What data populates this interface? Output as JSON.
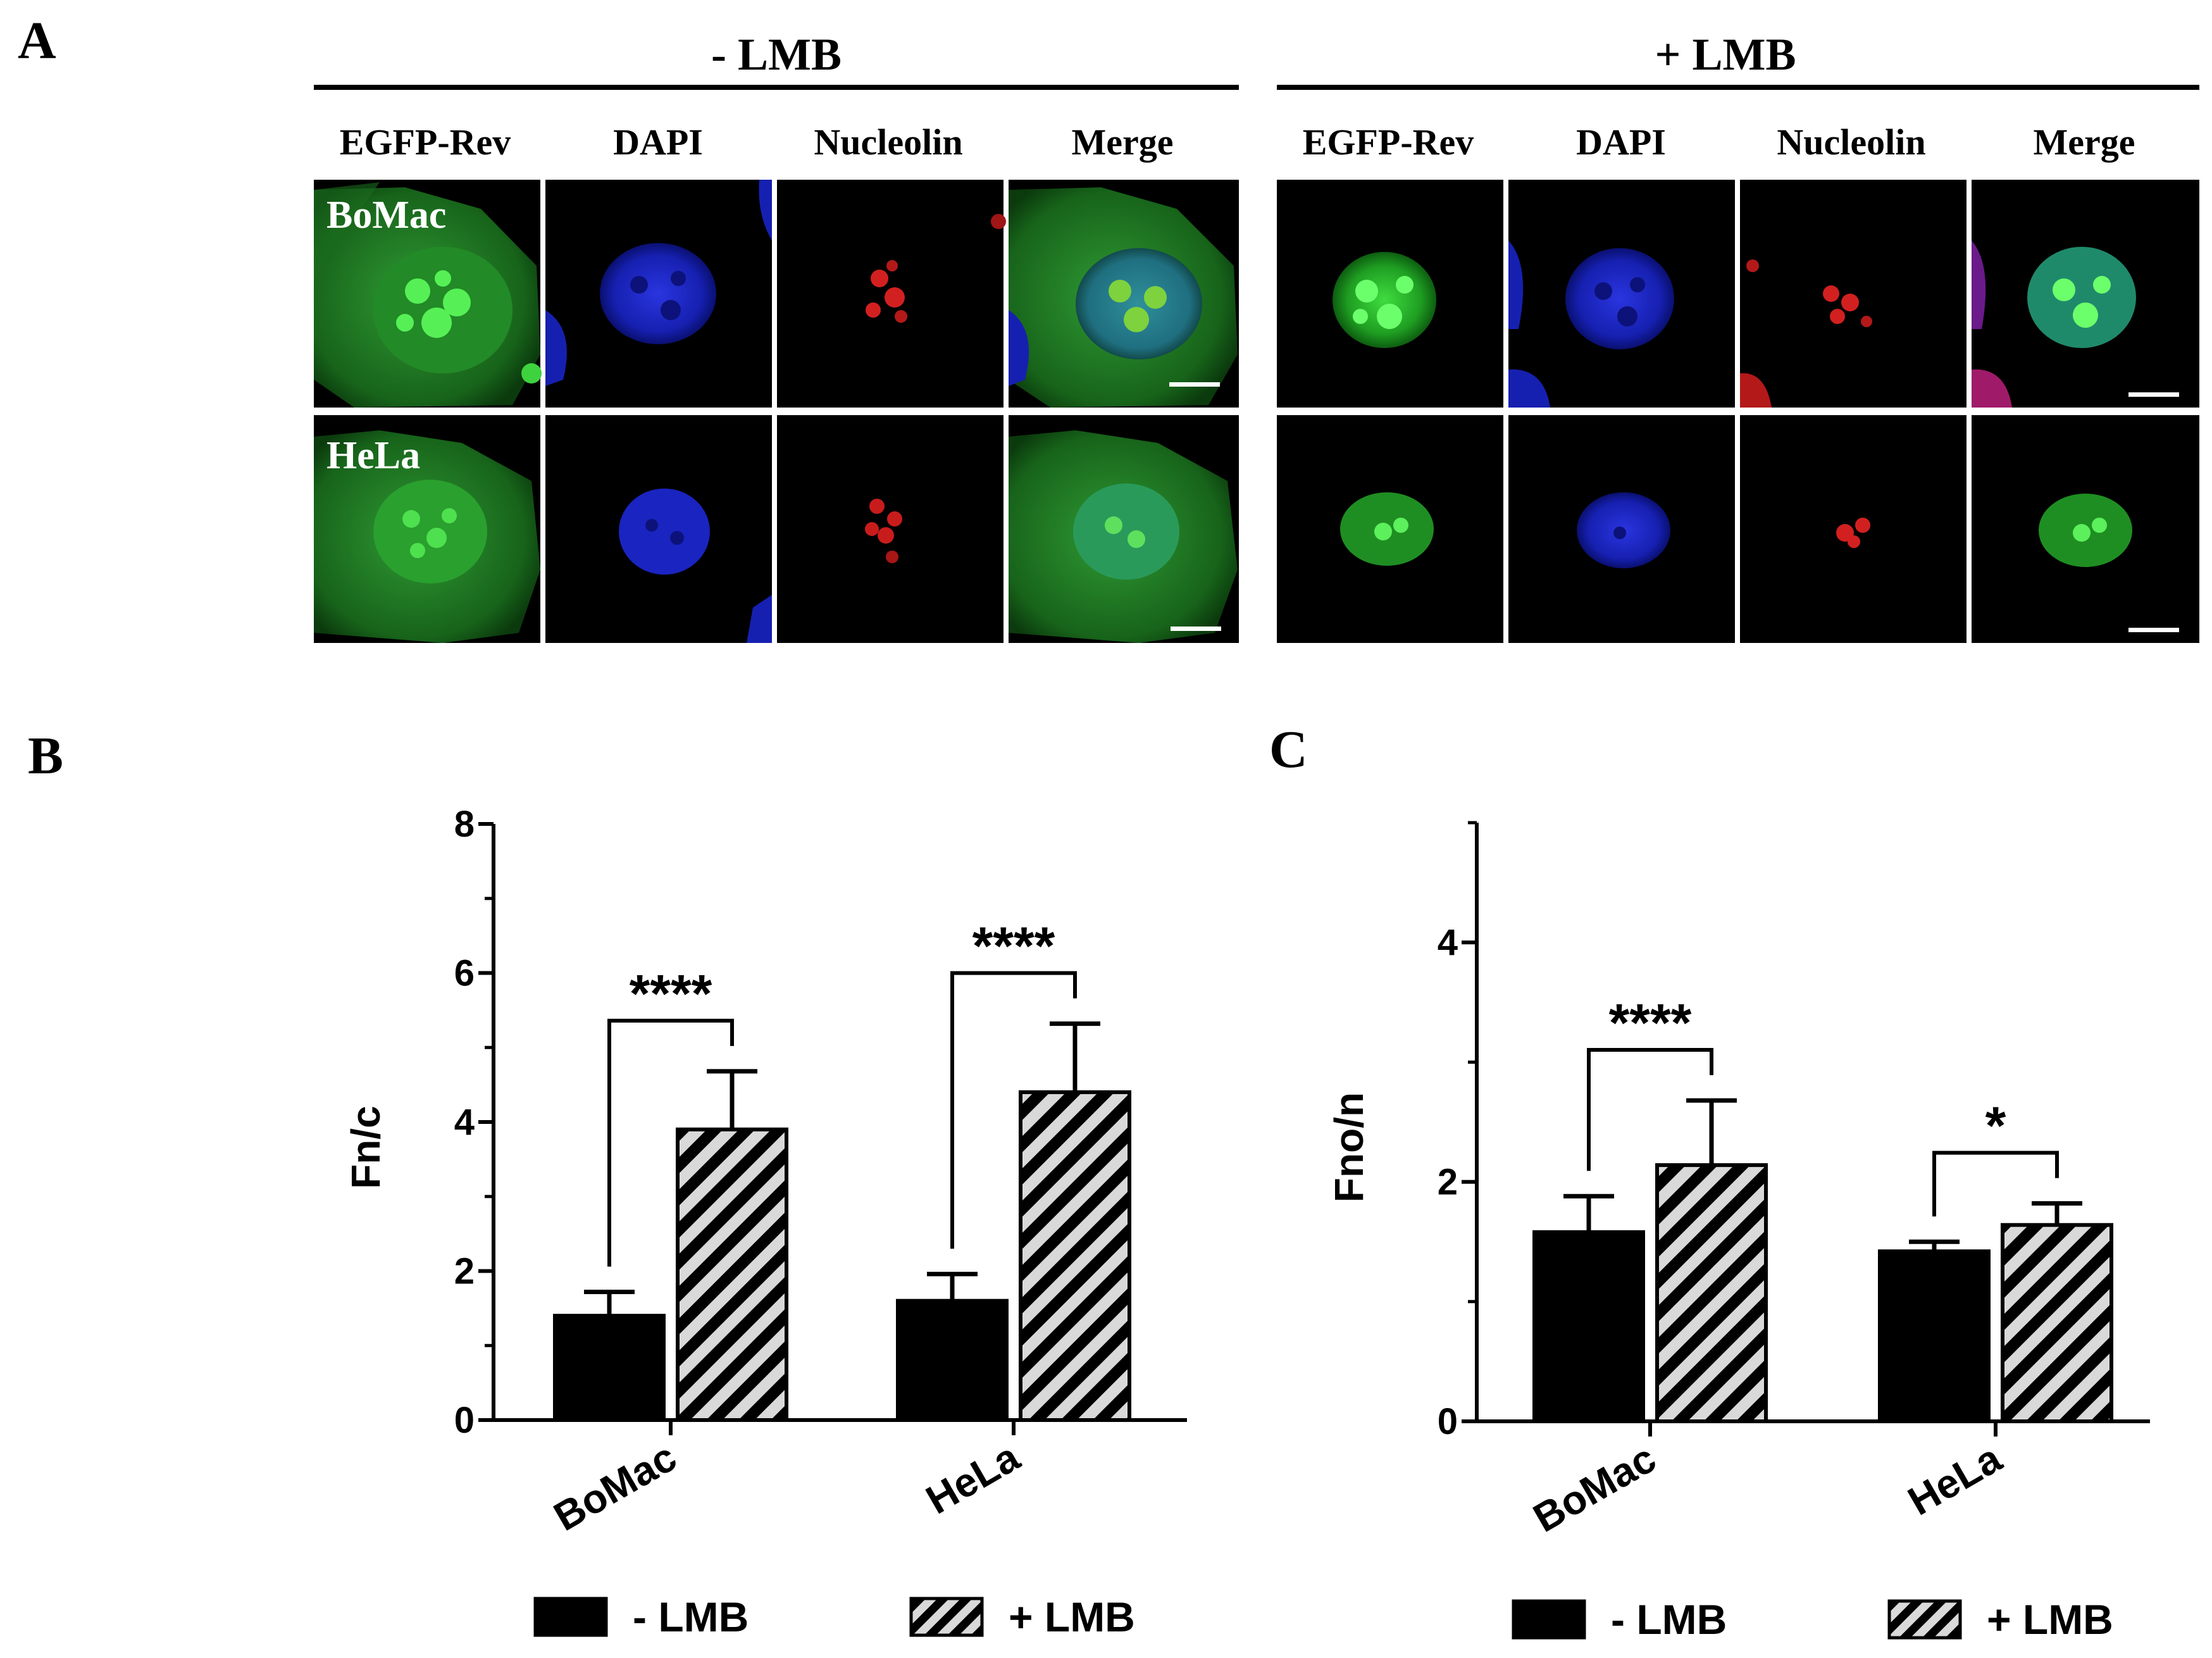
{
  "panel_a": {
    "letter": "A",
    "groups": [
      {
        "label": "- LMB",
        "channels": [
          "EGFP-Rev",
          "DAPI",
          "Nucleolin",
          "Merge"
        ]
      },
      {
        "label": "+ LMB",
        "channels": [
          "EGFP-Rev",
          "DAPI",
          "Nucleolin",
          "Merge"
        ]
      }
    ],
    "rows": [
      "BoMac",
      "HeLa"
    ]
  },
  "chart_data": [
    {
      "panel": "B",
      "type": "bar",
      "ylabel": "Fn/c",
      "xlabel": "",
      "ylim": [
        0,
        8
      ],
      "yticks": [
        0,
        2,
        4,
        6,
        8
      ],
      "categories": [
        "BoMac",
        "HeLa"
      ],
      "series": [
        {
          "name": "- LMB",
          "fill": "solid",
          "values": [
            1.4,
            1.6
          ],
          "errors": [
            0.32,
            0.36
          ]
        },
        {
          "name": "+ LMB",
          "fill": "hatched",
          "values": [
            3.9,
            4.4
          ],
          "errors": [
            0.78,
            0.92
          ]
        }
      ],
      "significance": [
        {
          "category": 0,
          "label": "****"
        },
        {
          "category": 1,
          "label": "****"
        }
      ],
      "legend": "bottom"
    },
    {
      "panel": "C",
      "type": "bar",
      "ylabel": "Fno/n",
      "xlabel": "",
      "ylim": [
        0,
        5
      ],
      "yticks": [
        0,
        2,
        4
      ],
      "categories": [
        "BoMac",
        "HeLa"
      ],
      "series": [
        {
          "name": "- LMB",
          "fill": "solid",
          "values": [
            1.58,
            1.42
          ],
          "errors": [
            0.3,
            0.08
          ]
        },
        {
          "name": "+ LMB",
          "fill": "hatched",
          "values": [
            2.14,
            1.64
          ],
          "errors": [
            0.54,
            0.18
          ]
        }
      ],
      "significance": [
        {
          "category": 0,
          "label": "****"
        },
        {
          "category": 1,
          "label": "*"
        }
      ],
      "legend": "bottom"
    }
  ]
}
